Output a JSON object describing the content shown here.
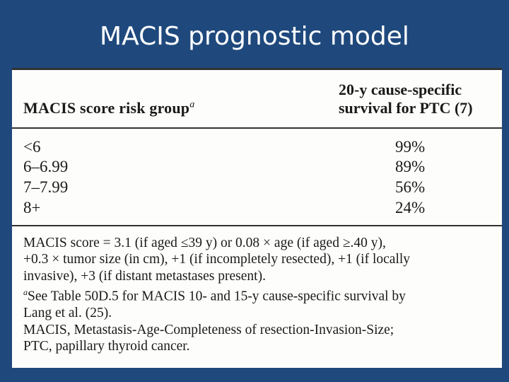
{
  "slide": {
    "title": "MACIS prognostic model"
  },
  "table": {
    "header_left": "MACIS score risk group",
    "header_left_footnote_mark": "a",
    "header_right_line1": "20-y cause-specific",
    "header_right_line2": "survival for PTC (7)",
    "rows": [
      {
        "group": "<6",
        "survival": "99%"
      },
      {
        "group": "6–6.99",
        "survival": "89%"
      },
      {
        "group": "7–7.99",
        "survival": "56%"
      },
      {
        "group": "8+",
        "survival": "24%"
      }
    ],
    "notes": {
      "formula_line1": "MACIS score = 3.1 (if aged ≤39 y) or 0.08 × age (if aged ≥.40 y),",
      "formula_line2": "+0.3 × tumor size (in cm), +1 (if incompletely resected), +1 (if locally",
      "formula_line3": "invasive), +3 (if distant metastases present).",
      "footnote_mark": "a",
      "footnote_line1": "See Table 50D.5 for MACIS 10- and 15-y cause-specific survival by",
      "footnote_line2": "Lang et al. (25).",
      "abbrev_line1": "MACIS, Metastasis-Age-Completeness of resection-Invasion-Size;",
      "abbrev_line2": "PTC, papillary thyroid cancer."
    }
  }
}
